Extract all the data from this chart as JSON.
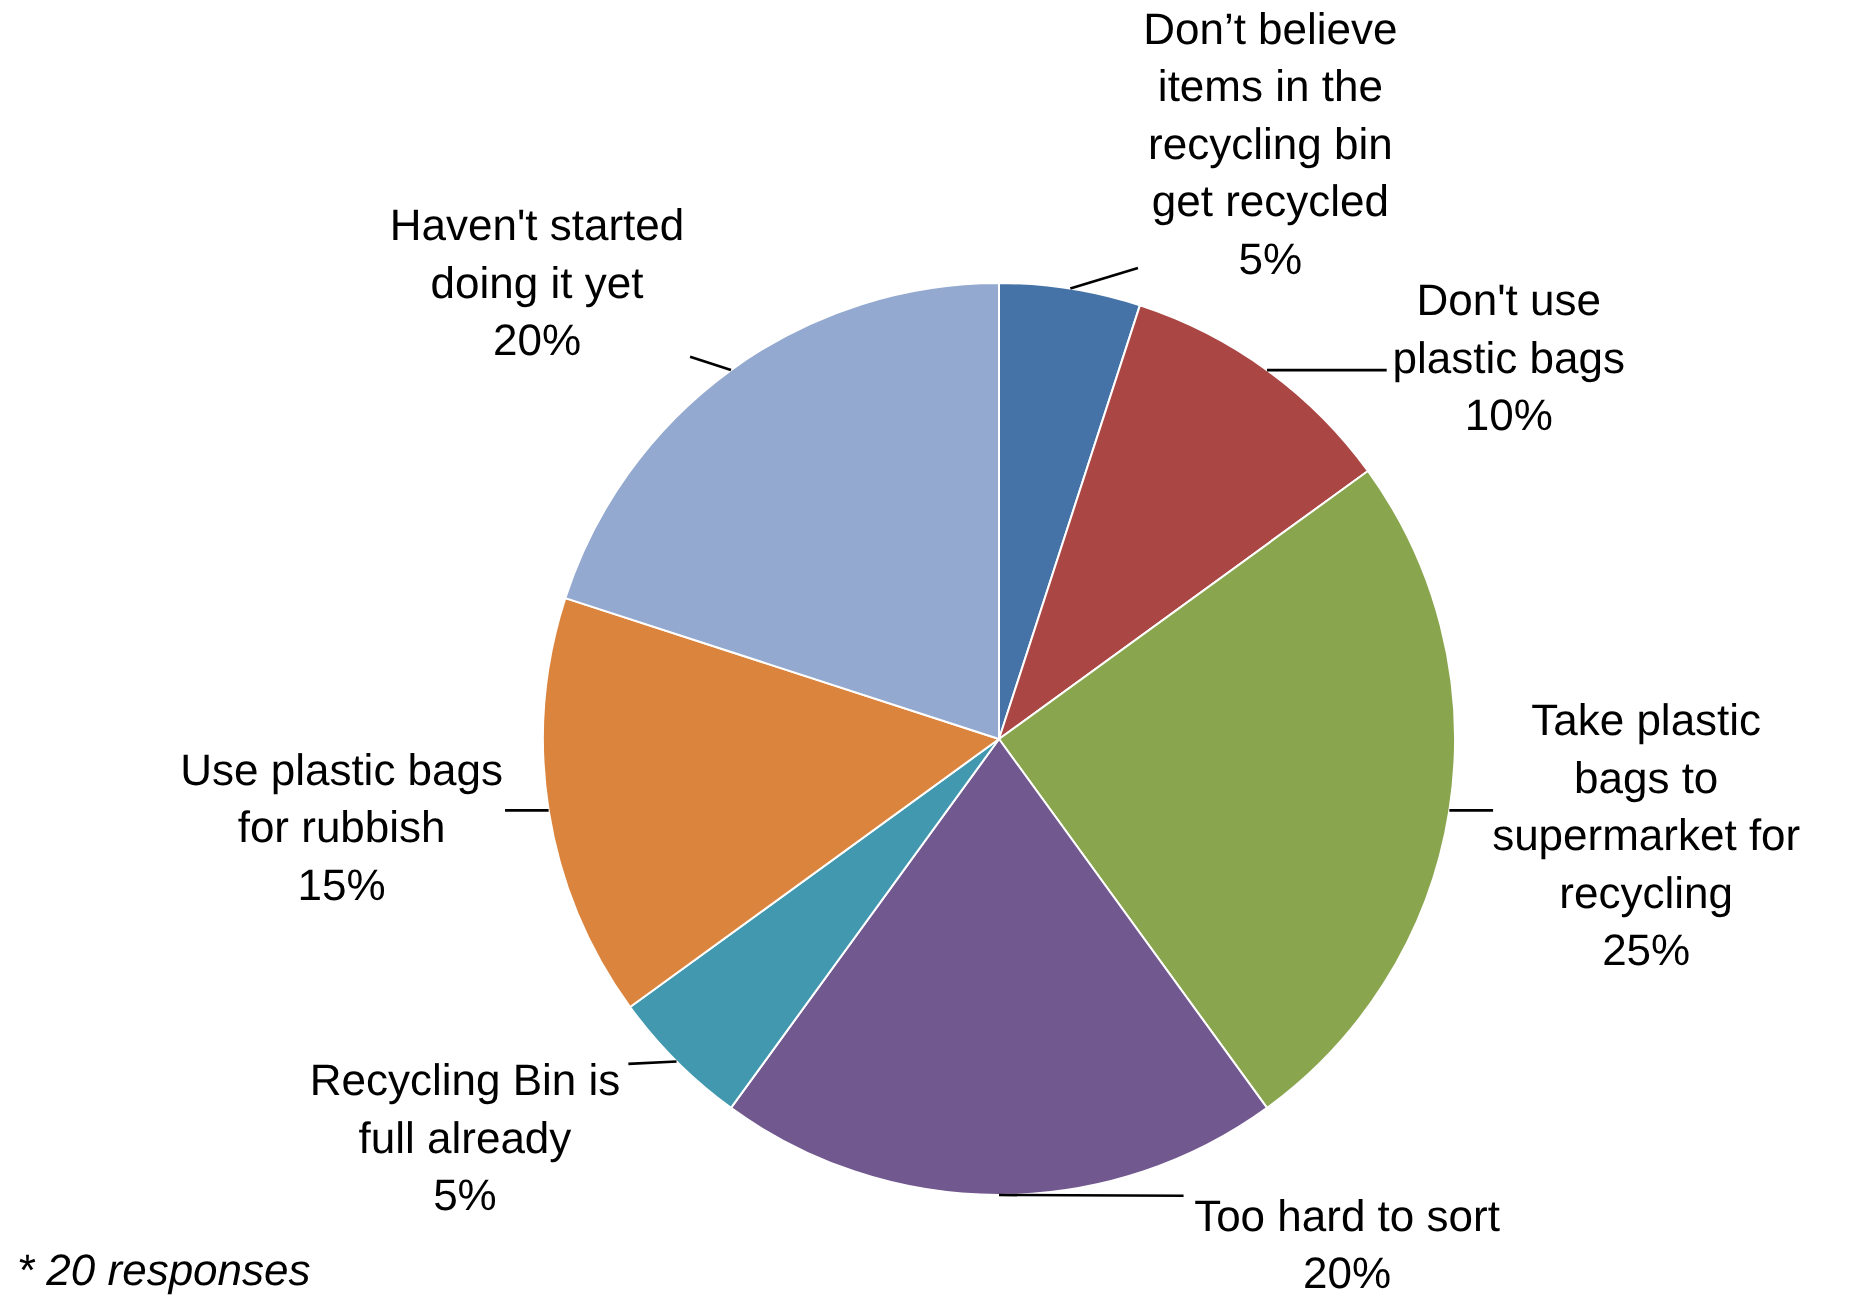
{
  "chart_data": {
    "type": "pie",
    "categories": [
      "Don’t believe items in the recycling bin get recycled",
      "Don't use plastic bags",
      "Take plastic bags to supermarket for recycling",
      "Too hard to sort",
      "Recycling Bin is full already",
      "Use plastic bags for rubbish",
      "Haven't started doing it yet"
    ],
    "values": [
      5,
      10,
      25,
      20,
      5,
      15,
      20
    ],
    "value_labels": [
      "5%",
      "10%",
      "25%",
      "20%",
      "5%",
      "15%",
      "20%"
    ],
    "colors": [
      "#4572a7",
      "#aa4643",
      "#89a54e",
      "#71588f",
      "#4198af",
      "#db843d",
      "#93a9cf"
    ],
    "annotations": [
      "* 20 responses"
    ]
  }
}
